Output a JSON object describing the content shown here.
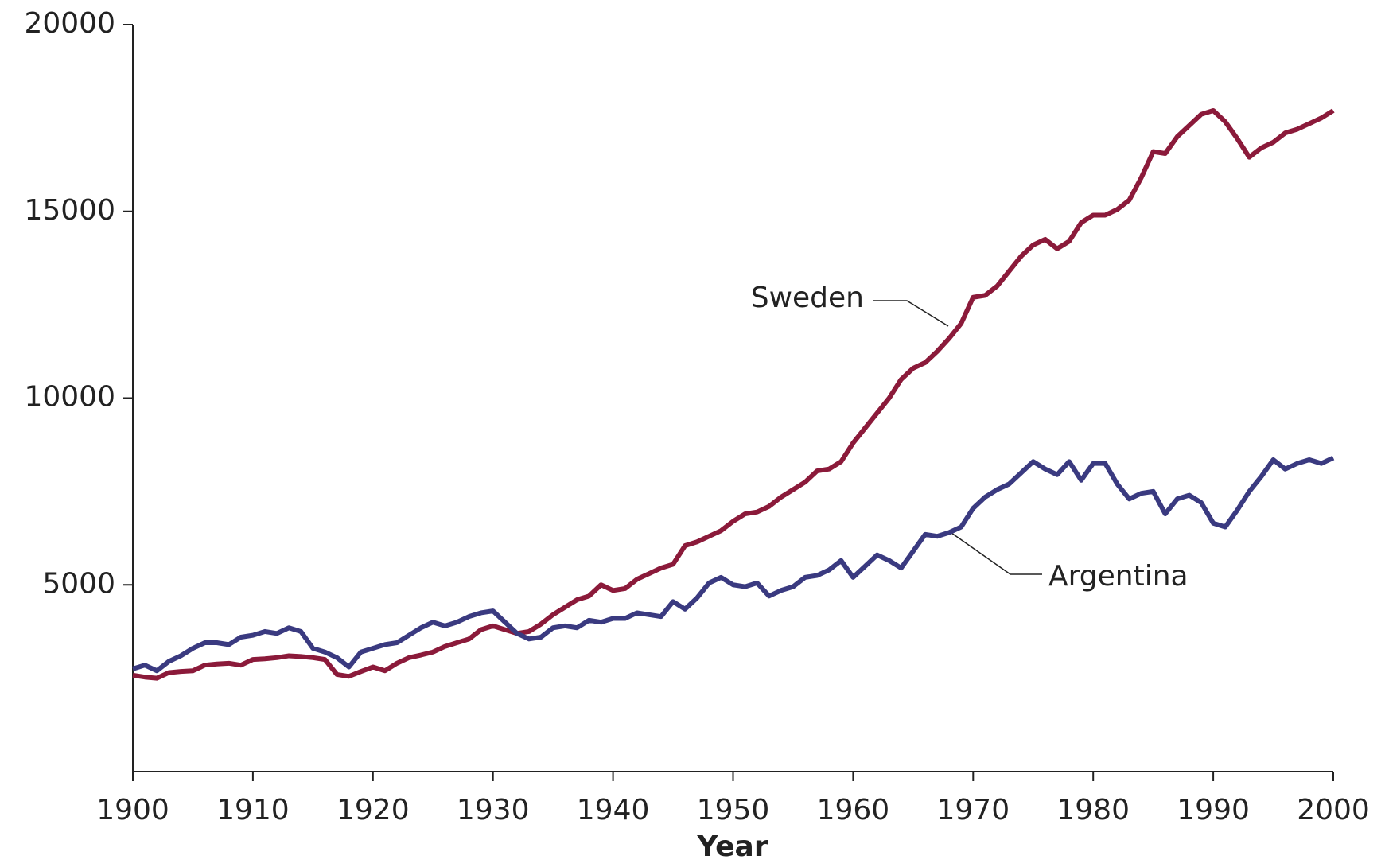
{
  "chart_data": {
    "type": "line",
    "x_label": "Year",
    "x": [
      1900,
      1901,
      1902,
      1903,
      1904,
      1905,
      1906,
      1907,
      1908,
      1909,
      1910,
      1911,
      1912,
      1913,
      1914,
      1915,
      1916,
      1917,
      1918,
      1919,
      1920,
      1921,
      1922,
      1923,
      1924,
      1925,
      1926,
      1927,
      1928,
      1929,
      1930,
      1931,
      1932,
      1933,
      1934,
      1935,
      1936,
      1937,
      1938,
      1939,
      1940,
      1941,
      1942,
      1943,
      1944,
      1945,
      1946,
      1947,
      1948,
      1949,
      1950,
      1951,
      1952,
      1953,
      1954,
      1955,
      1956,
      1957,
      1958,
      1959,
      1960,
      1961,
      1962,
      1963,
      1964,
      1965,
      1966,
      1967,
      1968,
      1969,
      1970,
      1971,
      1972,
      1973,
      1974,
      1975,
      1976,
      1977,
      1978,
      1979,
      1980,
      1981,
      1982,
      1983,
      1984,
      1985,
      1986,
      1987,
      1988,
      1989,
      1990,
      1991,
      1992,
      1993,
      1994,
      1995,
      1996,
      1997,
      1998,
      1999,
      2000
    ],
    "series": [
      {
        "name": "Sweden",
        "color": "#8b1a3a",
        "values": [
          2580,
          2530,
          2500,
          2650,
          2680,
          2700,
          2850,
          2880,
          2900,
          2850,
          3000,
          3020,
          3050,
          3100,
          3080,
          3050,
          3000,
          2600,
          2550,
          2680,
          2800,
          2700,
          2900,
          3050,
          3120,
          3200,
          3350,
          3450,
          3550,
          3800,
          3900,
          3800,
          3700,
          3750,
          3950,
          4200,
          4400,
          4600,
          4700,
          5000,
          4850,
          4900,
          5150,
          5300,
          5450,
          5550,
          6050,
          6150,
          6300,
          6450,
          6700,
          6900,
          6950,
          7100,
          7350,
          7550,
          7750,
          8050,
          8100,
          8300,
          8800,
          9200,
          9600,
          10000,
          10500,
          10800,
          10950,
          11250,
          11600,
          12000,
          12700,
          12750,
          13000,
          13400,
          13800,
          14100,
          14250,
          14000,
          14200,
          14700,
          14900,
          14900,
          15050,
          15300,
          15900,
          16600,
          16550,
          17000,
          17300,
          17600,
          17700,
          17400,
          16950,
          16450,
          16700,
          16850,
          17100,
          17200,
          17350,
          17500,
          17700
        ]
      },
      {
        "name": "Argentina",
        "color": "#3a3a80",
        "values": [
          2750,
          2850,
          2700,
          2950,
          3100,
          3300,
          3450,
          3450,
          3400,
          3600,
          3650,
          3750,
          3700,
          3850,
          3750,
          3300,
          3200,
          3050,
          2800,
          3200,
          3300,
          3400,
          3450,
          3650,
          3850,
          4000,
          3900,
          4000,
          4150,
          4250,
          4300,
          4000,
          3700,
          3550,
          3600,
          3850,
          3900,
          3850,
          4050,
          4000,
          4100,
          4100,
          4250,
          4200,
          4150,
          4550,
          4350,
          4650,
          5050,
          5200,
          5000,
          4950,
          5050,
          4700,
          4850,
          4950,
          5200,
          5250,
          5400,
          5650,
          5200,
          5500,
          5800,
          5650,
          5450,
          5900,
          6350,
          6300,
          6400,
          6550,
          7050,
          7350,
          7550,
          7700,
          8000,
          8300,
          8100,
          7950,
          8300,
          7800,
          8250,
          8250,
          7700,
          7300,
          7450,
          7500,
          6900,
          7300,
          7400,
          7200,
          6650,
          6550,
          7000,
          7500,
          7900,
          8350,
          8100,
          8250,
          8350,
          8250,
          8400
        ]
      }
    ],
    "xlim": [
      1900,
      2000
    ],
    "xticks": [
      1900,
      1910,
      1920,
      1930,
      1940,
      1950,
      1960,
      1970,
      1980,
      1990,
      2000
    ],
    "ylim": [
      0,
      20000
    ],
    "yticks": [
      5000,
      10000,
      15000,
      20000
    ]
  }
}
